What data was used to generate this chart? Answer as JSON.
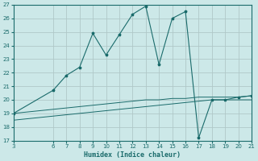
{
  "xlabel": "Humidex (Indice chaleur)",
  "bg_color": "#cce8e8",
  "grid_color": "#b0c8c8",
  "line_color": "#1a6b6b",
  "x_ticks": [
    3,
    6,
    7,
    8,
    9,
    10,
    11,
    12,
    13,
    14,
    15,
    16,
    17,
    18,
    19,
    20,
    21
  ],
  "xlim": [
    3,
    21
  ],
  "ylim": [
    17,
    27
  ],
  "y_ticks": [
    17,
    18,
    19,
    20,
    21,
    22,
    23,
    24,
    25,
    26,
    27
  ],
  "main_line": {
    "x": [
      3,
      6,
      7,
      8,
      9,
      10,
      11,
      12,
      13,
      14,
      15,
      16,
      17,
      18,
      19,
      20,
      21
    ],
    "y": [
      19,
      20.7,
      21.8,
      22.4,
      24.9,
      23.3,
      24.8,
      26.3,
      26.9,
      22.6,
      26.0,
      26.5,
      17.2,
      20.0,
      20.0,
      20.2,
      20.3
    ]
  },
  "upper_ref_line": {
    "x": [
      3,
      4,
      5,
      6,
      7,
      8,
      9,
      10,
      11,
      12,
      13,
      14,
      15,
      16,
      17,
      18,
      19,
      20,
      21
    ],
    "y": [
      19.0,
      19.1,
      19.2,
      19.3,
      19.4,
      19.5,
      19.6,
      19.7,
      19.8,
      19.9,
      20.0,
      20.0,
      20.1,
      20.1,
      20.2,
      20.2,
      20.2,
      20.2,
      20.3
    ]
  },
  "lower_ref_line": {
    "x": [
      3,
      4,
      5,
      6,
      7,
      8,
      9,
      10,
      11,
      12,
      13,
      14,
      15,
      16,
      17,
      18,
      19,
      20,
      21
    ],
    "y": [
      18.5,
      18.6,
      18.7,
      18.8,
      18.9,
      19.0,
      19.1,
      19.2,
      19.3,
      19.4,
      19.5,
      19.6,
      19.7,
      19.8,
      19.9,
      20.0,
      20.0,
      20.0,
      20.0
    ]
  }
}
